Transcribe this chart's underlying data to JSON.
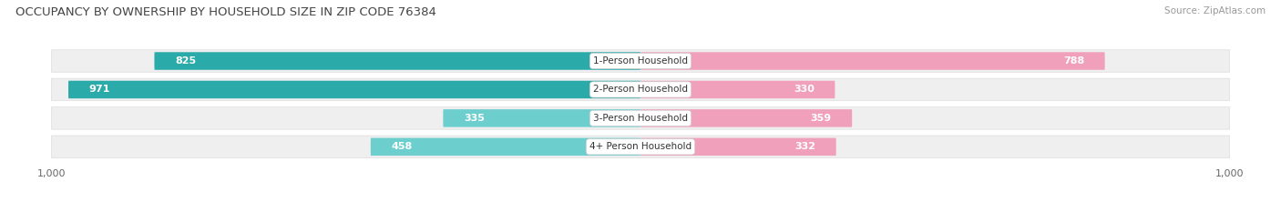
{
  "title": "OCCUPANCY BY OWNERSHIP BY HOUSEHOLD SIZE IN ZIP CODE 76384",
  "source": "Source: ZipAtlas.com",
  "categories": [
    "1-Person Household",
    "2-Person Household",
    "3-Person Household",
    "4+ Person Household"
  ],
  "owner_values": [
    825,
    971,
    335,
    458
  ],
  "renter_values": [
    788,
    330,
    359,
    332
  ],
  "owner_color_dark": "#2BAAAA",
  "owner_color_light": "#6DCECE",
  "renter_color": "#F0A0BB",
  "row_bg_color": "#EFEFEF",
  "row_separator_color": "#FFFFFF",
  "axis_max": 1000,
  "title_fontsize": 9.5,
  "source_fontsize": 7.5,
  "legend_fontsize": 8,
  "tick_fontsize": 8,
  "category_fontsize": 7.5,
  "value_fontsize": 8,
  "background_color": "#FFFFFF",
  "owner_colors": [
    "#2BAAAA",
    "#2BAAAA",
    "#6DCECE",
    "#6DCECE"
  ]
}
